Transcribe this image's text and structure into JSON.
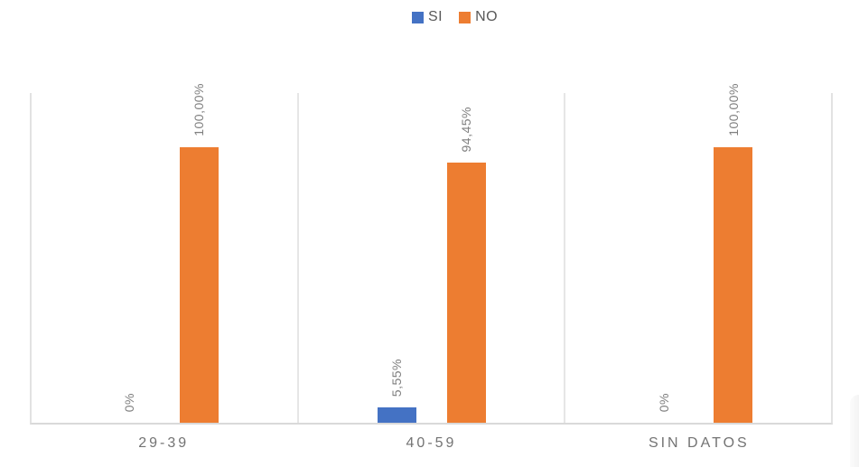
{
  "legend": {
    "items": [
      {
        "label": "SI",
        "color": "#4472C4"
      },
      {
        "label": "NO",
        "color": "#ED7D31"
      }
    ]
  },
  "chart_data": {
    "type": "bar",
    "title": "",
    "categories": [
      "29-39",
      "40-59",
      "SIN DATOS"
    ],
    "series": [
      {
        "name": "SI",
        "color": "#4472C4",
        "values": [
          0,
          5.55,
          0
        ],
        "labels": [
          "0%",
          "5,55%",
          "0%"
        ]
      },
      {
        "name": "NO",
        "color": "#ED7D31",
        "values": [
          100,
          94.45,
          100
        ],
        "labels": [
          "100,00%",
          "94,45%",
          "100,00%"
        ]
      }
    ],
    "ylabel": "",
    "xlabel": "",
    "ylim": [
      0,
      120
    ],
    "value_unit": "percent",
    "data_labels": "rotated 90deg, outside end, gray",
    "legend_position": "top-center",
    "grid": "vertical category separators only, no horizontal gridlines, no y-axis labels"
  }
}
